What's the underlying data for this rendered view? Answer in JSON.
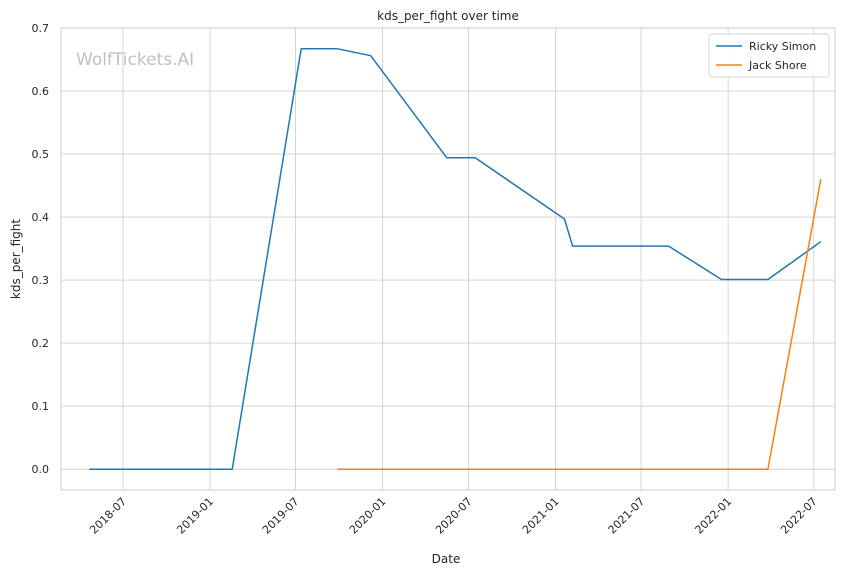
{
  "chart_data": {
    "type": "line",
    "title": "kds_per_fight over time",
    "xlabel": "Date",
    "ylabel": "kds_per_fight",
    "watermark": "WolfTickets.AI",
    "x_ticks": [
      "2018-07",
      "2019-01",
      "2019-07",
      "2020-01",
      "2020-07",
      "2021-01",
      "2021-07",
      "2022-01",
      "2022-07"
    ],
    "y_ticks": [
      "0.0",
      "0.1",
      "0.2",
      "0.3",
      "0.4",
      "0.5",
      "0.6",
      "0.7"
    ],
    "xlim": [
      "2018-02-20",
      "2022-08-15"
    ],
    "ylim": [
      -0.033,
      0.7
    ],
    "grid": true,
    "legend_position": "top-right",
    "series": [
      {
        "name": "Ricky Simon",
        "color": "#1f77b4",
        "points": [
          {
            "x": "2018-04-21",
            "y": 0.0
          },
          {
            "x": "2019-02-17",
            "y": 0.0
          },
          {
            "x": "2019-07-13",
            "y": 0.667
          },
          {
            "x": "2019-09-28",
            "y": 0.667
          },
          {
            "x": "2019-12-07",
            "y": 0.656
          },
          {
            "x": "2020-05-16",
            "y": 0.494
          },
          {
            "x": "2020-07-15",
            "y": 0.494
          },
          {
            "x": "2021-01-20",
            "y": 0.397
          },
          {
            "x": "2021-02-06",
            "y": 0.354
          },
          {
            "x": "2021-08-28",
            "y": 0.354
          },
          {
            "x": "2021-12-18",
            "y": 0.301
          },
          {
            "x": "2022-03-26",
            "y": 0.301
          },
          {
            "x": "2022-07-16",
            "y": 0.361
          }
        ]
      },
      {
        "name": "Jack Shore",
        "color": "#ff7f0e",
        "points": [
          {
            "x": "2019-09-28",
            "y": 0.0
          },
          {
            "x": "2022-03-26",
            "y": 0.0
          },
          {
            "x": "2022-07-16",
            "y": 0.46
          }
        ]
      }
    ]
  }
}
